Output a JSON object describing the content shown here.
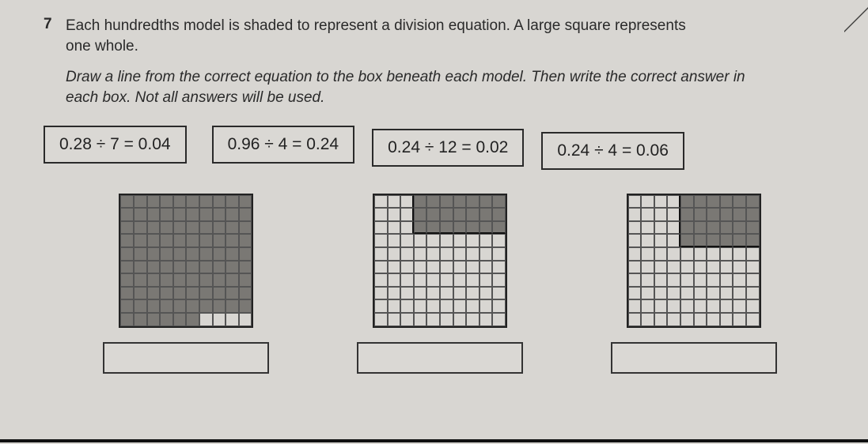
{
  "question": {
    "number": "7",
    "prompt_line1": "Each hundredths model is shaded to represent a division equation. A large square represents",
    "prompt_line2": "one whole.",
    "instruction_line1": "Draw a line from the correct equation to the box beneath each model. Then write the correct answer in",
    "instruction_line2": "each box. Not all answers will be used."
  },
  "equations": [
    {
      "text": "0.28 ÷ 7 = 0.04"
    },
    {
      "text": "0.96 ÷ 4 = 0.24"
    },
    {
      "text": "0.24 ÷ 12 = 0.02"
    },
    {
      "text": "0.24 ÷ 4 = 0.06"
    }
  ],
  "models": [
    {
      "type": "hundredths-grid",
      "rows": 10,
      "cols": 10,
      "shaded_count": 96,
      "pattern": "full_except_bottom_right_4",
      "group_cols": 4,
      "shaded_color": "#7a7874",
      "grid_line_color": "#555"
    },
    {
      "type": "hundredths-grid",
      "rows": 10,
      "cols": 10,
      "shaded_count": 24,
      "pattern": "top_rows_partial",
      "shaded_rows": 3,
      "shaded_start_col": 3,
      "shaded_color": "#7a7874",
      "grid_line_color": "#555"
    },
    {
      "type": "hundredths-grid",
      "rows": 10,
      "cols": 10,
      "shaded_count": 28,
      "pattern": "top_rows_partial",
      "shaded_rows": 4,
      "shaded_start_col": 4,
      "shaded_color": "#7a7874",
      "grid_line_color": "#555"
    }
  ],
  "answer_boxes": [
    "",
    "",
    ""
  ],
  "style": {
    "page_bg": "#d8d6d2",
    "text_color": "#2a2a2a",
    "border_color": "#2a2a2a",
    "font_family": "Arial",
    "q_fontsize_pt": 14,
    "eq_fontsize_pt": 16
  }
}
